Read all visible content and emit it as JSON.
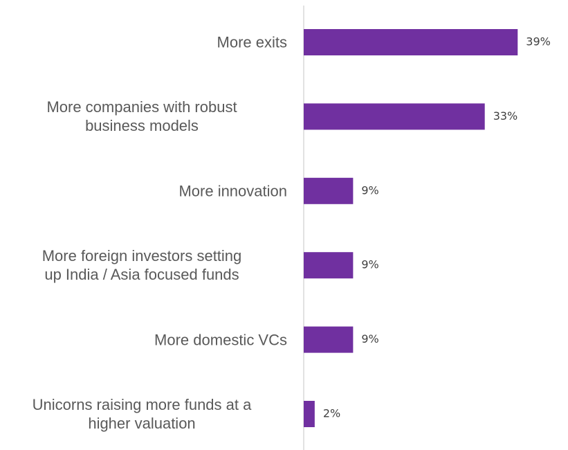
{
  "chart_data": {
    "type": "bar",
    "orientation": "horizontal",
    "categories": [
      "More exits",
      "More companies with robust\nbusiness models",
      "More innovation",
      "More foreign investors setting\nup India / Asia focused funds",
      "More domestic VCs",
      "Unicorns raising more funds at a\nhigher valuation"
    ],
    "values": [
      39,
      33,
      9,
      9,
      9,
      2
    ],
    "value_labels": [
      "39%",
      "33%",
      "9%",
      "9%",
      "9%",
      "2%"
    ],
    "color": "#7030a0"
  }
}
